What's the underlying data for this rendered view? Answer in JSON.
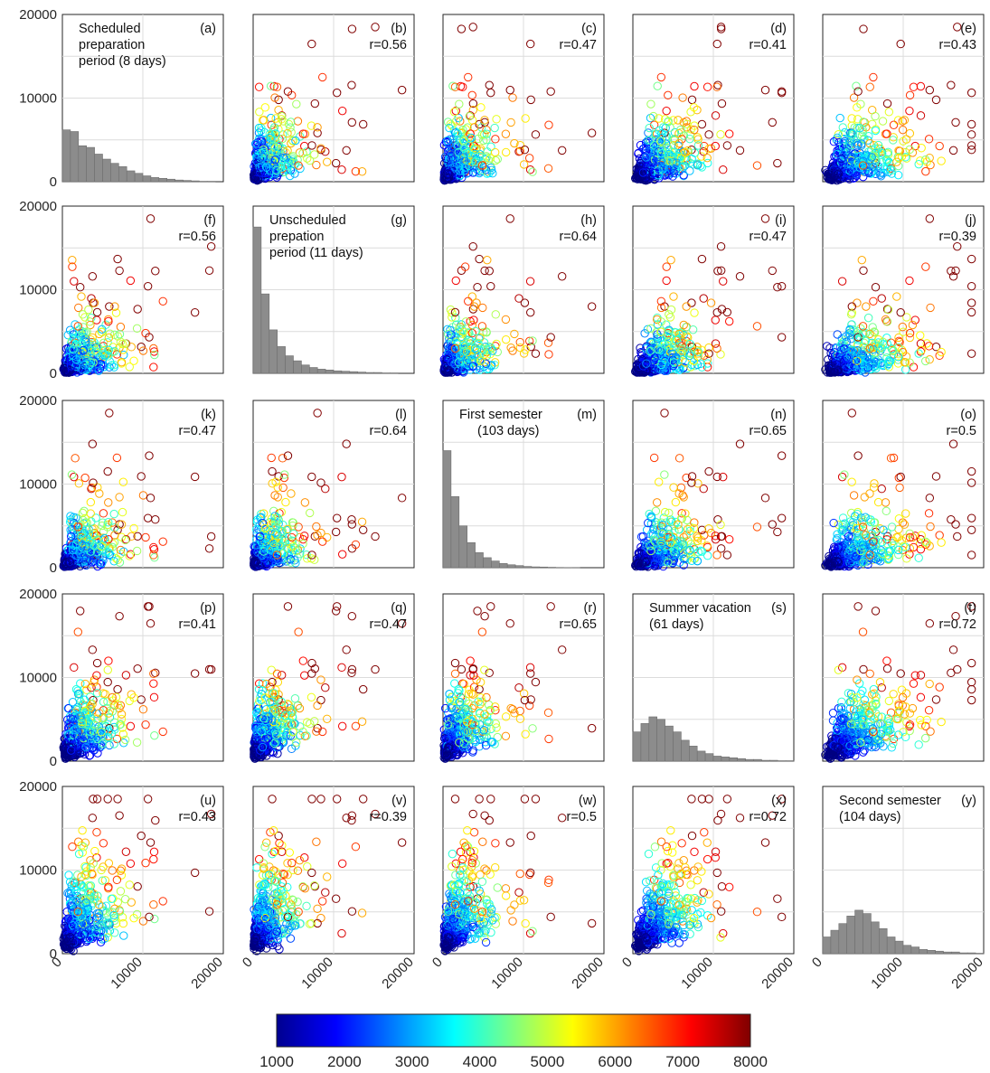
{
  "chart_data": {
    "type": "scatter-matrix",
    "variables": [
      {
        "title": "Scheduled preparation period (8 days)",
        "lines": [
          "Scheduled",
          "preparation",
          "period (8 days)"
        ],
        "hist_color": "#2e86c9"
      },
      {
        "title": "Unscheduled prepation period (11 days)",
        "lines": [
          "Unscheduled",
          "prepation",
          "period (11 days)"
        ],
        "hist_color": "#e06a2a"
      },
      {
        "title": "First semester (103 days)",
        "lines": [
          "First semester",
          "(103 days)"
        ],
        "hist_color": "#f0b020"
      },
      {
        "title": "Summer vacation (61 days)",
        "lines": [
          "Summer vacation",
          "(61 days)"
        ],
        "hist_color": "#8c4aa6"
      },
      {
        "title": "Second semester (104 days)",
        "lines": [
          "Second semester",
          "(104 days)"
        ],
        "hist_color": "#6aaa3a"
      }
    ],
    "panel_letters": [
      "(a)",
      "(b)",
      "(c)",
      "(d)",
      "(e)",
      "(f)",
      "(g)",
      "(h)",
      "(i)",
      "(j)",
      "(k)",
      "(l)",
      "(m)",
      "(n)",
      "(o)",
      "(p)",
      "(q)",
      "(r)",
      "(s)",
      "(t)",
      "(u)",
      "(v)",
      "(w)",
      "(x)",
      "(y)"
    ],
    "correlation": [
      [
        null,
        0.56,
        0.47,
        0.41,
        0.43
      ],
      [
        0.56,
        null,
        0.64,
        0.47,
        0.39
      ],
      [
        0.47,
        0.64,
        null,
        0.65,
        0.5
      ],
      [
        0.41,
        0.47,
        0.65,
        null,
        0.72
      ],
      [
        0.43,
        0.39,
        0.5,
        0.72,
        null
      ]
    ],
    "r_labels": [
      [
        "",
        "r=0.56",
        "r=0.47",
        "r=0.41",
        "r=0.43"
      ],
      [
        "r=0.56",
        "",
        "r=0.64",
        "r=0.47",
        "r=0.39"
      ],
      [
        "r=0.47",
        "r=0.64",
        "",
        "r=0.65",
        "r=0.5"
      ],
      [
        "r=0.41",
        "r=0.47",
        "r=0.65",
        "",
        "r=0.72"
      ],
      [
        "r=0.43",
        "r=0.39",
        "r=0.5",
        "r=0.72",
        ""
      ]
    ],
    "axis_range": [
      0,
      20000
    ],
    "x_ticks": [
      0,
      10000,
      20000
    ],
    "x_tick_labels": [
      "0",
      "10000",
      "20000"
    ],
    "y_ticks": [
      0,
      10000,
      20000
    ],
    "y_tick_labels": [
      "0",
      "10000",
      "20000"
    ],
    "grid": true,
    "histograms": [
      {
        "bins": [
          0,
          1000,
          2000,
          3000,
          4000,
          5000,
          6000,
          7000,
          8000,
          9000,
          10000,
          11000,
          12000,
          13000,
          14000,
          15000,
          16000,
          17000,
          18000,
          19000
        ],
        "density": [
          6.2,
          6.0,
          4.3,
          4.1,
          3.3,
          2.7,
          2.2,
          1.8,
          1.3,
          1.0,
          0.7,
          0.5,
          0.4,
          0.3,
          0.2,
          0.15,
          0.1,
          0.05,
          0.05,
          0.0
        ],
        "fit_type": "lognormal",
        "fit_peak_x": 800,
        "fit_peak_y": 6.5
      },
      {
        "bins": [
          0,
          1000,
          2000,
          3000,
          4000,
          5000,
          6000,
          7000,
          8000,
          9000,
          10000,
          11000,
          12000,
          13000,
          14000,
          15000,
          16000,
          17000,
          18000,
          19000
        ],
        "density": [
          17.5,
          9.5,
          5.2,
          3.2,
          2.1,
          1.5,
          1.0,
          0.7,
          0.5,
          0.4,
          0.3,
          0.25,
          0.2,
          0.15,
          0.1,
          0.1,
          0.05,
          0.05,
          0.0,
          0.0
        ],
        "fit_type": "exponential"
      },
      {
        "bins": [
          0,
          1000,
          2000,
          3000,
          4000,
          5000,
          6000,
          7000,
          8000,
          9000,
          10000,
          11000,
          12000,
          13000,
          14000,
          15000,
          16000,
          17000,
          18000,
          19000
        ],
        "density": [
          14.0,
          8.5,
          5.0,
          3.0,
          1.8,
          1.2,
          0.8,
          0.5,
          0.35,
          0.25,
          0.15,
          0.1,
          0.08,
          0.05,
          0.03,
          0.02,
          0.01,
          0.0,
          0.0,
          0.0
        ],
        "fit_type": "exponential"
      },
      {
        "bins": [
          0,
          1000,
          2000,
          3000,
          4000,
          5000,
          6000,
          7000,
          8000,
          9000,
          10000,
          11000,
          12000,
          13000,
          14000,
          15000,
          16000,
          17000,
          18000,
          19000
        ],
        "density": [
          3.5,
          4.5,
          5.3,
          5.0,
          4.2,
          3.5,
          2.5,
          1.8,
          1.2,
          0.9,
          0.6,
          0.5,
          0.4,
          0.3,
          0.2,
          0.2,
          0.1,
          0.1,
          0.05,
          0.05
        ],
        "fit_type": "lognormal",
        "fit_peak_x": 2500,
        "fit_peak_y": 5.8
      },
      {
        "bins": [
          0,
          1000,
          2000,
          3000,
          4000,
          5000,
          6000,
          7000,
          8000,
          9000,
          10000,
          11000,
          12000,
          13000,
          14000,
          15000,
          16000,
          17000,
          18000,
          19000
        ],
        "density": [
          2.0,
          2.8,
          3.6,
          4.5,
          5.2,
          4.8,
          3.8,
          3.0,
          2.0,
          1.5,
          1.0,
          0.8,
          0.5,
          0.4,
          0.3,
          0.2,
          0.2,
          0.1,
          0.1,
          0.05
        ],
        "fit_type": "lognormal",
        "fit_peak_x": 3200,
        "fit_peak_y": 4.8
      }
    ],
    "scatter": {
      "n_points": 500,
      "marker": "open-circle",
      "color_variable_range": [
        1000,
        8000
      ]
    },
    "colorbar": {
      "colormap": "jet",
      "range": [
        1000,
        8000
      ],
      "ticks": [
        1000,
        2000,
        3000,
        4000,
        5000,
        6000,
        7000,
        8000
      ],
      "tick_labels": [
        "1000",
        "2000",
        "3000",
        "4000",
        "5000",
        "6000",
        "7000",
        "8000"
      ]
    }
  }
}
